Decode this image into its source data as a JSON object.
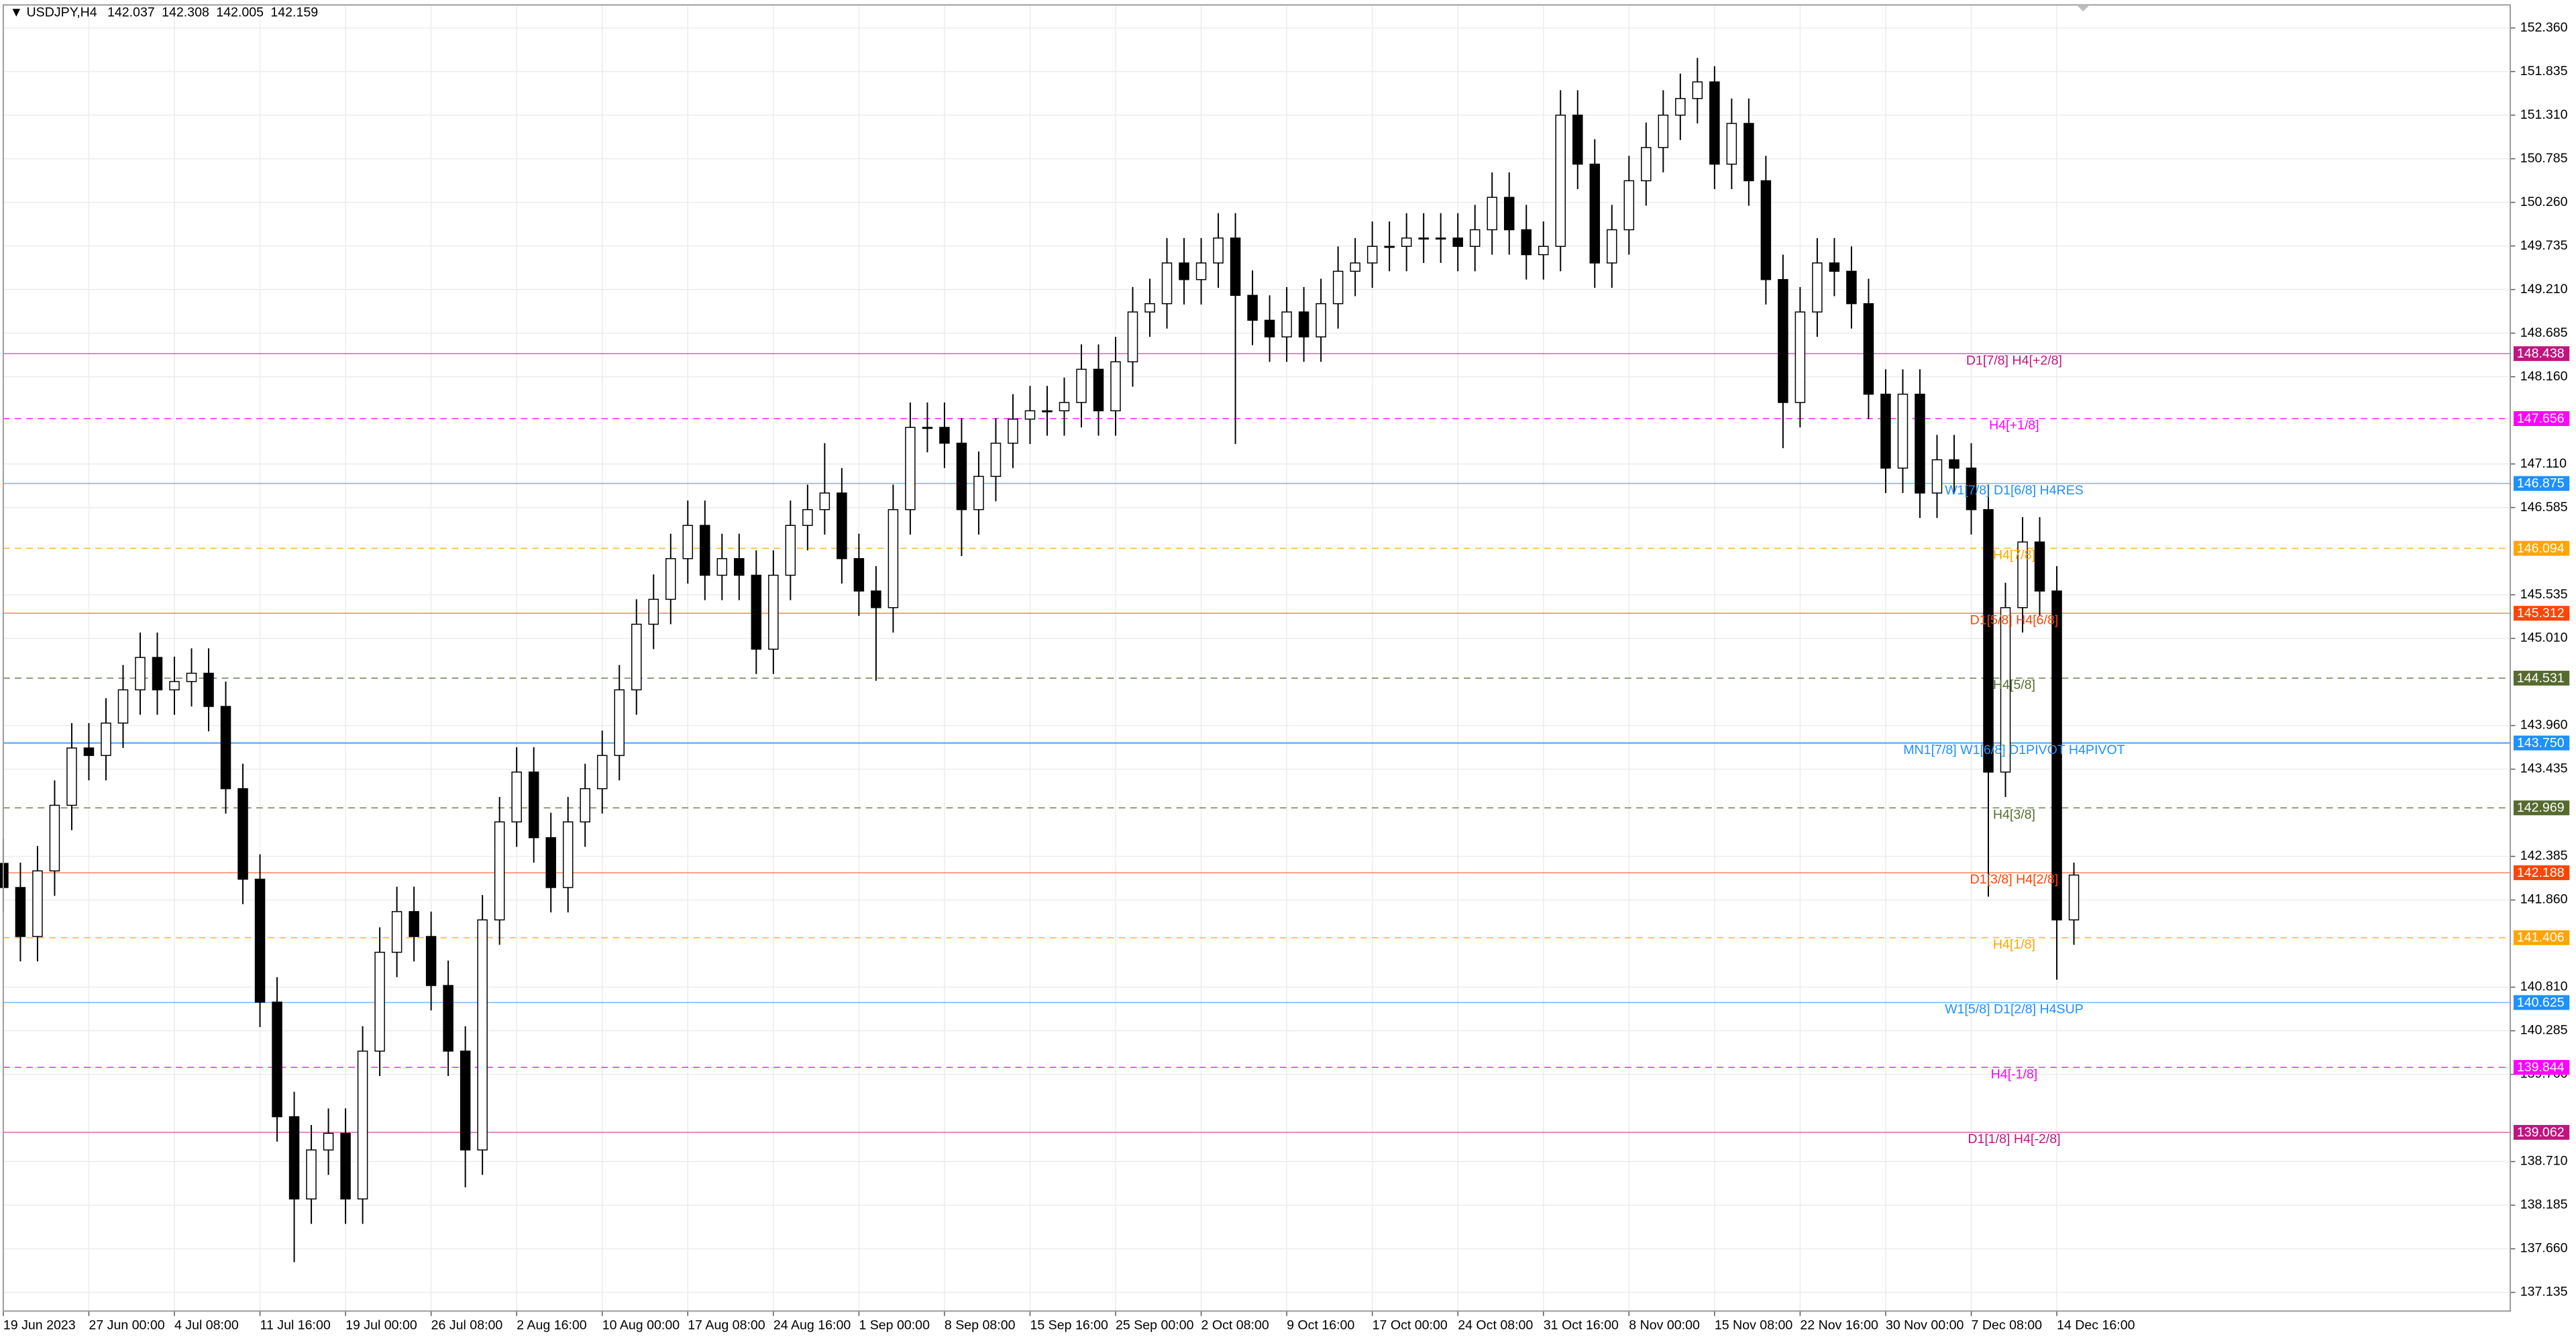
{
  "chart_data": {
    "type": "candlestick",
    "title": "USDJPY,H4",
    "quote": [
      142.037,
      142.308,
      142.005,
      142.159
    ],
    "up_color": "#ffffff",
    "down_color": "#000000",
    "grid": true,
    "xlim": [
      0,
      146.5
    ],
    "ylim": [
      136.91,
      152.637
    ],
    "xticks": [
      {
        "value": 0,
        "label": "19 Jun 2023"
      },
      {
        "value": 5,
        "label": "27 Jun 00:00"
      },
      {
        "value": 10,
        "label": "4 Jul 08:00"
      },
      {
        "value": 15,
        "label": "11 Jul 16:00"
      },
      {
        "value": 20,
        "label": "19 Jul 00:00"
      },
      {
        "value": 25,
        "label": "26 Jul 08:00"
      },
      {
        "value": 30,
        "label": "2 Aug 16:00"
      },
      {
        "value": 35,
        "label": "10 Aug 00:00"
      },
      {
        "value": 40,
        "label": "17 Aug 08:00"
      },
      {
        "value": 45,
        "label": "24 Aug 16:00"
      },
      {
        "value": 50,
        "label": "1 Sep 00:00"
      },
      {
        "value": 55,
        "label": "8 Sep 08:00"
      },
      {
        "value": 60,
        "label": "15 Sep 16:00"
      },
      {
        "value": 65,
        "label": "25 Sep 00:00"
      },
      {
        "value": 70,
        "label": "2 Oct 08:00"
      },
      {
        "value": 75,
        "label": "9 Oct 16:00"
      },
      {
        "value": 80,
        "label": "17 Oct 00:00"
      },
      {
        "value": 85,
        "label": "24 Oct 08:00"
      },
      {
        "value": 90,
        "label": "31 Oct 16:00"
      },
      {
        "value": 95,
        "label": "8 Nov 00:00"
      },
      {
        "value": 100,
        "label": "15 Nov 08:00"
      },
      {
        "value": 105,
        "label": "22 Nov 16:00"
      },
      {
        "value": 110,
        "label": "30 Nov 00:00"
      },
      {
        "value": 115,
        "label": "7 Dec 08:00"
      },
      {
        "value": 120,
        "label": "14 Dec 16:00"
      }
    ],
    "yticks": [
      {
        "value": 152.36,
        "label": "152.360"
      },
      151.835,
      {
        "value": 151.31,
        "label": "151.310"
      },
      150.785,
      {
        "value": 150.26,
        "label": "150.260"
      },
      149.735,
      {
        "value": 149.21,
        "label": "149.210"
      },
      148.685,
      {
        "value": 148.16,
        "label": "148.160"
      },
      {
        "value": 147.11,
        "label": "147.110"
      },
      146.585,
      145.535,
      {
        "value": 145.01,
        "label": "145.010"
      },
      {
        "value": 143.96,
        "label": "143.960"
      },
      143.435,
      142.385,
      {
        "value": 141.86,
        "label": "141.860"
      },
      {
        "value": 140.81,
        "label": "140.810"
      },
      140.285,
      {
        "value": 139.76,
        "label": "139.760"
      },
      {
        "value": 138.71,
        "label": "138.710"
      },
      138.185,
      {
        "value": 137.66,
        "label": "137.660"
      },
      137.135
    ],
    "levels": [
      {
        "name": "D1[7/8] H4[+2/8]",
        "value": 148.438,
        "color": "#c0157f",
        "dashed": false
      },
      {
        "name": "H4[+1/8]",
        "value": 147.656,
        "color": "#ff00ff",
        "dashed": true
      },
      {
        "name": "W1[7/8] D1[6/8] H4RES",
        "value": 146.875,
        "color": "#1e90ff",
        "dashed": false
      },
      {
        "name": "H4[7/8]",
        "value": 146.094,
        "color": "#ffa500",
        "dashed": true
      },
      {
        "name": "D1[5/8] H4[6/8]",
        "value": 145.312,
        "color": "#ff4500",
        "dashed": false
      },
      {
        "name": "H4[5/8]",
        "value": 144.531,
        "color": "#556b2f",
        "dashed": true
      },
      {
        "name": "MN1[7/8] W1[6/8] D1PIVOT H4PIVOT",
        "value": 143.75,
        "value_label": "143.750",
        "color": "#1e90ff",
        "dashed": false
      },
      {
        "name": "H4[3/8]",
        "value": 142.969,
        "color": "#556b2f",
        "dashed": true
      },
      {
        "name": "D1[3/8] H4[2/8]",
        "value": 142.188,
        "color": "#ff4500",
        "dashed": false
      },
      {
        "name": "H4[1/8]",
        "value": 141.406,
        "color": "#ffa500",
        "dashed": true
      },
      {
        "name": "W1[5/8] D1[2/8] H4SUP",
        "value": 140.625,
        "color": "#1e90ff",
        "dashed": false
      },
      {
        "name": "H4[-1/8]",
        "value": 139.844,
        "color": "#ff00ff",
        "dashed": true
      },
      {
        "name": "D1[1/8] H4[-2/8]",
        "value": 139.062,
        "color": "#c0157f",
        "dashed": false
      }
    ],
    "x": [
      0,
      1,
      2,
      3,
      4,
      5,
      6,
      7,
      8,
      9,
      10,
      11,
      12,
      13,
      14,
      15,
      16,
      17,
      18,
      19,
      20,
      21,
      22,
      23,
      24,
      25,
      26,
      27,
      28,
      29,
      30,
      31,
      32,
      33,
      34,
      35,
      36,
      37,
      38,
      39,
      40,
      41,
      42,
      43,
      44,
      45,
      46,
      47,
      48,
      49,
      50,
      51,
      52,
      53,
      54,
      55,
      56,
      57,
      58,
      59,
      60,
      61,
      62,
      63,
      64,
      65,
      66,
      67,
      68,
      69,
      70,
      71,
      72,
      73,
      74,
      75,
      76,
      77,
      78,
      79,
      80,
      81,
      82,
      83,
      84,
      85,
      86,
      87,
      88,
      89,
      90,
      91,
      92,
      93,
      94,
      95,
      96,
      97,
      98,
      99,
      100,
      101,
      102,
      103,
      104,
      105,
      106,
      107,
      108,
      109,
      110,
      111,
      112,
      113,
      114,
      115,
      116,
      117,
      118,
      119,
      120,
      121
    ],
    "open": [
      142.3,
      142.01,
      141.42,
      142.21,
      143.0,
      143.69,
      143.6,
      143.99,
      144.39,
      144.78,
      144.39,
      144.49,
      144.59,
      144.19,
      143.2,
      142.11,
      140.63,
      139.25,
      138.26,
      138.85,
      139.05,
      138.26,
      140.04,
      141.23,
      141.72,
      141.42,
      140.83,
      140.04,
      138.85,
      141.62,
      142.8,
      143.4,
      142.61,
      142.01,
      142.8,
      143.2,
      143.6,
      144.39,
      145.18,
      145.48,
      145.97,
      146.37,
      145.77,
      145.97,
      145.77,
      144.88,
      145.77,
      146.37,
      146.56,
      146.76,
      145.97,
      145.58,
      145.38,
      146.56,
      147.55,
      147.55,
      147.36,
      146.56,
      146.96,
      147.36,
      147.65,
      147.75,
      147.75,
      147.85,
      148.25,
      147.75,
      148.34,
      148.94,
      149.04,
      149.53,
      149.33,
      149.53,
      149.83,
      149.14,
      148.84,
      148.64,
      148.94,
      148.64,
      149.04,
      149.43,
      149.53,
      149.73,
      149.73,
      149.83,
      149.83,
      149.83,
      149.73,
      149.93,
      150.32,
      149.93,
      149.63,
      149.73,
      151.31,
      150.72,
      149.53,
      149.93,
      150.52,
      150.92,
      151.31,
      151.51,
      151.71,
      150.72,
      151.21,
      150.52,
      149.33,
      147.85,
      148.94,
      149.53,
      149.43,
      149.04,
      147.95,
      147.06,
      147.95,
      146.76,
      147.16,
      147.06,
      146.56,
      143.4,
      145.38,
      146.17,
      145.58,
      141.62
    ],
    "high": [
      142.6,
      142.31,
      142.51,
      143.3,
      143.99,
      143.99,
      144.29,
      144.69,
      145.08,
      145.08,
      144.79,
      144.89,
      144.89,
      144.49,
      143.5,
      142.41,
      140.93,
      139.55,
      139.15,
      139.35,
      139.35,
      140.34,
      141.53,
      142.02,
      142.02,
      141.72,
      141.13,
      140.34,
      141.92,
      143.1,
      143.7,
      143.7,
      142.91,
      143.1,
      143.5,
      143.9,
      144.69,
      145.48,
      145.78,
      146.27,
      146.67,
      146.67,
      146.27,
      146.27,
      146.07,
      146.07,
      146.67,
      146.86,
      147.36,
      147.06,
      146.27,
      145.88,
      146.86,
      147.85,
      147.85,
      147.85,
      147.66,
      147.26,
      147.66,
      147.95,
      148.05,
      148.05,
      148.15,
      148.55,
      148.55,
      148.64,
      149.24,
      149.34,
      149.83,
      149.83,
      149.83,
      150.13,
      150.13,
      149.44,
      149.14,
      149.24,
      149.24,
      149.34,
      149.73,
      149.83,
      150.03,
      150.03,
      150.13,
      150.13,
      150.13,
      150.13,
      150.23,
      150.62,
      150.62,
      150.23,
      150.03,
      151.61,
      151.61,
      151.02,
      150.23,
      150.82,
      151.22,
      151.61,
      151.81,
      152.0,
      151.9,
      151.51,
      151.51,
      150.82,
      149.63,
      149.24,
      149.83,
      149.83,
      149.73,
      149.34,
      148.25,
      148.25,
      148.25,
      147.46,
      147.46,
      147.36,
      146.86,
      145.68,
      146.47,
      146.47,
      145.88,
      142.31
    ],
    "low": [
      141.71,
      141.12,
      141.12,
      141.91,
      142.7,
      143.3,
      143.3,
      143.69,
      144.09,
      144.09,
      144.09,
      144.19,
      143.89,
      142.9,
      141.81,
      140.33,
      138.95,
      137.5,
      137.96,
      138.55,
      137.96,
      137.96,
      139.74,
      140.93,
      141.12,
      140.53,
      139.74,
      138.4,
      138.55,
      141.32,
      142.5,
      142.31,
      141.71,
      141.71,
      142.5,
      142.9,
      143.3,
      144.09,
      144.88,
      145.18,
      145.67,
      145.47,
      145.47,
      145.47,
      144.58,
      144.58,
      145.47,
      146.07,
      146.26,
      145.67,
      145.28,
      144.5,
      145.08,
      146.26,
      147.25,
      147.06,
      146.0,
      146.26,
      146.66,
      147.06,
      147.35,
      147.45,
      147.45,
      147.55,
      147.45,
      147.45,
      148.04,
      148.64,
      148.74,
      149.03,
      149.03,
      149.23,
      147.35,
      148.54,
      148.34,
      148.34,
      148.34,
      148.34,
      148.74,
      149.13,
      149.23,
      149.43,
      149.43,
      149.53,
      149.53,
      149.43,
      149.43,
      149.63,
      149.63,
      149.33,
      149.33,
      149.43,
      150.42,
      149.23,
      149.23,
      149.63,
      150.22,
      150.62,
      151.01,
      151.21,
      150.42,
      150.42,
      150.22,
      149.03,
      147.3,
      147.55,
      148.64,
      149.13,
      148.74,
      147.65,
      146.76,
      146.76,
      146.46,
      146.46,
      146.76,
      146.26,
      141.9,
      143.1,
      145.08,
      145.28,
      140.9,
      141.32
    ],
    "close": [
      142.01,
      141.42,
      142.21,
      143.0,
      143.69,
      143.6,
      143.99,
      144.39,
      144.78,
      144.39,
      144.49,
      144.59,
      144.19,
      143.2,
      142.11,
      140.63,
      139.25,
      138.26,
      138.85,
      139.05,
      138.26,
      140.04,
      141.23,
      141.72,
      141.42,
      140.83,
      140.04,
      138.85,
      141.62,
      142.8,
      143.4,
      142.61,
      142.01,
      142.8,
      143.2,
      143.6,
      144.39,
      145.18,
      145.48,
      145.97,
      146.37,
      145.77,
      145.97,
      145.77,
      144.88,
      145.77,
      146.37,
      146.56,
      146.76,
      145.97,
      145.58,
      145.38,
      146.56,
      147.55,
      147.55,
      147.36,
      146.56,
      146.96,
      147.36,
      147.65,
      147.75,
      147.75,
      147.85,
      148.25,
      147.75,
      148.34,
      148.94,
      149.04,
      149.53,
      149.33,
      149.53,
      149.83,
      149.14,
      148.84,
      148.64,
      148.94,
      148.64,
      149.04,
      149.43,
      149.53,
      149.73,
      149.73,
      149.83,
      149.83,
      149.83,
      149.73,
      149.93,
      150.32,
      149.93,
      149.63,
      149.73,
      151.31,
      150.72,
      149.53,
      149.93,
      150.52,
      150.92,
      151.31,
      151.51,
      151.71,
      150.72,
      151.21,
      150.52,
      149.33,
      147.85,
      148.94,
      149.53,
      149.43,
      149.04,
      147.95,
      147.06,
      147.95,
      146.76,
      147.16,
      147.06,
      146.56,
      143.4,
      145.38,
      146.17,
      145.58,
      141.62,
      142.16
    ]
  }
}
